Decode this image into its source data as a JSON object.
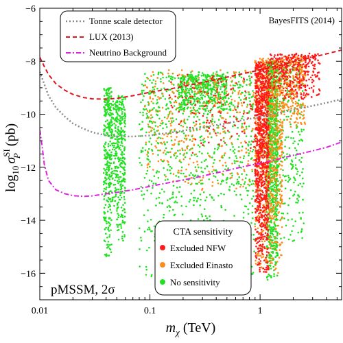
{
  "chart_data": {
    "type": "scatter",
    "xscale": "log",
    "xlim": [
      0.01,
      5.5
    ],
    "ylim": [
      -17,
      -6
    ],
    "xlabel_base": "m",
    "xlabel_sub": "χ",
    "xlabel_unit": "(TeV)",
    "ylabel_prefix": "log",
    "ylabel_base_sub": "10",
    "ylabel_sigma": "σ",
    "ylabel_sup": "SI",
    "ylabel_sub": "P",
    "ylabel_unit": "(pb)",
    "x_ticks": [
      {
        "value": 0.01,
        "label": "0.01"
      },
      {
        "value": 0.1,
        "label": "0.1"
      },
      {
        "value": 1,
        "label": "1"
      }
    ],
    "y_ticks": [
      {
        "value": -6,
        "label": "−6"
      },
      {
        "value": -8,
        "label": "−8"
      },
      {
        "value": -10,
        "label": "−10"
      },
      {
        "value": -12,
        "label": "−12"
      },
      {
        "value": -14,
        "label": "−14"
      },
      {
        "value": -16,
        "label": "−16"
      }
    ],
    "annotation_top_right": "BayesFITS (2014)",
    "annotation_bottom_left": "pMSSM, 2σ",
    "curves": [
      {
        "name": "Tonne scale detector",
        "color": "#8a8a8a",
        "dash": "dotted",
        "x": [
          0.01,
          0.012,
          0.014,
          0.017,
          0.02,
          0.025,
          0.03,
          0.04,
          0.05,
          0.07,
          0.1,
          0.15,
          0.2,
          0.3,
          0.5,
          0.7,
          1.0,
          1.5,
          2.0,
          3.0,
          4.0,
          5.5
        ],
        "y": [
          -8.4,
          -9.3,
          -9.75,
          -10.1,
          -10.35,
          -10.55,
          -10.68,
          -10.8,
          -10.84,
          -10.84,
          -10.8,
          -10.7,
          -10.62,
          -10.5,
          -10.34,
          -10.22,
          -10.1,
          -9.95,
          -9.83,
          -9.68,
          -9.57,
          -9.43
        ]
      },
      {
        "name": "LUX (2013)",
        "color": "#e0141c",
        "dash": "dashed",
        "x": [
          0.01,
          0.011,
          0.012,
          0.014,
          0.017,
          0.02,
          0.025,
          0.03,
          0.04,
          0.05,
          0.07,
          0.1,
          0.15,
          0.2,
          0.3,
          0.5,
          0.7,
          1.0,
          1.5,
          2.0,
          3.0,
          4.0,
          5.5
        ],
        "y": [
          -7.85,
          -8.2,
          -8.5,
          -8.85,
          -9.1,
          -9.25,
          -9.37,
          -9.42,
          -9.43,
          -9.4,
          -9.3,
          -9.17,
          -9.05,
          -8.95,
          -8.8,
          -8.6,
          -8.47,
          -8.33,
          -8.16,
          -8.02,
          -7.85,
          -7.72,
          -7.58
        ]
      },
      {
        "name": "Neutrino Background",
        "color": "#e020e0",
        "dash": "dashdot",
        "x": [
          0.01,
          0.0105,
          0.011,
          0.012,
          0.014,
          0.017,
          0.02,
          0.025,
          0.03,
          0.04,
          0.05,
          0.07,
          0.1,
          0.15,
          0.2,
          0.3,
          0.5,
          0.7,
          1.0,
          1.5,
          2.0,
          3.0,
          4.0,
          5.5
        ],
        "y": [
          -10.6,
          -11.2,
          -11.9,
          -12.5,
          -12.85,
          -13.0,
          -13.07,
          -13.1,
          -13.08,
          -13.0,
          -12.95,
          -12.85,
          -12.72,
          -12.58,
          -12.48,
          -12.33,
          -12.12,
          -11.98,
          -11.85,
          -11.68,
          -11.55,
          -11.38,
          -11.25,
          -11.05
        ]
      }
    ],
    "scatter_legend": {
      "title": "CTA sensitivity",
      "entries": [
        {
          "name": "Excluded NFW",
          "color": "#ff1a1a"
        },
        {
          "name": "Excluded Einasto",
          "color": "#ff8c1a"
        },
        {
          "name": "No sensitivity",
          "color": "#22e022"
        }
      ]
    },
    "scatter_regions": [
      {
        "series": "No sensitivity",
        "x_range": [
          0.038,
          0.045
        ],
        "y_range": [
          -15.5,
          -9.0
        ],
        "density": 320
      },
      {
        "series": "No sensitivity",
        "x_range": [
          0.05,
          0.06
        ],
        "y_range": [
          -14.8,
          -9.2
        ],
        "density": 280
      },
      {
        "series": "No sensitivity",
        "x_range": [
          0.045,
          0.05
        ],
        "y_range": [
          -13.5,
          -9.5
        ],
        "density": 100
      },
      {
        "series": "No sensitivity",
        "x_range": [
          0.08,
          0.9
        ],
        "y_range": [
          -16.2,
          -8.4
        ],
        "density": 900
      },
      {
        "series": "No sensitivity",
        "x_range": [
          0.18,
          0.5
        ],
        "y_range": [
          -10.0,
          -8.5
        ],
        "density": 420
      },
      {
        "series": "No sensitivity",
        "x_range": [
          1.15,
          1.45
        ],
        "y_range": [
          -16.3,
          -8.0
        ],
        "density": 900
      },
      {
        "series": "No sensitivity",
        "x_range": [
          1.45,
          2.5
        ],
        "y_range": [
          -15.0,
          -8.0
        ],
        "density": 250
      },
      {
        "series": "Excluded Einasto",
        "x_range": [
          0.09,
          0.9
        ],
        "y_range": [
          -13.0,
          -8.3
        ],
        "density": 350
      },
      {
        "series": "Excluded Einasto",
        "x_range": [
          0.9,
          1.6
        ],
        "y_range": [
          -16.0,
          -7.9
        ],
        "density": 900
      },
      {
        "series": "Excluded Einasto",
        "x_range": [
          1.6,
          2.6
        ],
        "y_range": [
          -10.5,
          -7.8
        ],
        "density": 250
      },
      {
        "series": "Excluded NFW",
        "x_range": [
          0.9,
          1.2
        ],
        "y_range": [
          -16.0,
          -8.0
        ],
        "density": 900
      },
      {
        "series": "Excluded NFW",
        "x_range": [
          1.2,
          3.5
        ],
        "y_range": [
          -9.5,
          -7.7
        ],
        "density": 350
      },
      {
        "series": "Excluded NFW",
        "x_range": [
          0.15,
          0.9
        ],
        "y_range": [
          -11.5,
          -8.5
        ],
        "density": 120
      }
    ]
  }
}
